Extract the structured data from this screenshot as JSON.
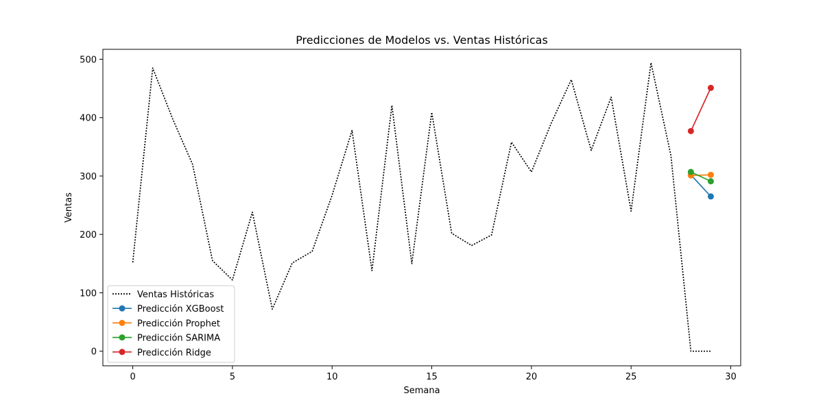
{
  "chart_data": {
    "type": "line",
    "title": "Predicciones de Modelos vs. Ventas Históricas",
    "xlabel": "Semana",
    "ylabel": "Ventas",
    "xlim": [
      -1.5,
      30.5
    ],
    "ylim": [
      -25,
      517
    ],
    "xticks": [
      0,
      5,
      10,
      15,
      20,
      25,
      30
    ],
    "yticks": [
      0,
      100,
      200,
      300,
      400,
      500
    ],
    "grid": false,
    "legend_position": "lower-left",
    "series": [
      {
        "name": "Ventas Históricas",
        "style": "dotted",
        "color": "#000000",
        "marker": "none",
        "x": [
          0,
          1,
          2,
          3,
          4,
          5,
          6,
          7,
          8,
          9,
          10,
          11,
          12,
          13,
          14,
          15,
          16,
          17,
          18,
          19,
          20,
          21,
          22,
          23,
          24,
          25,
          26,
          27,
          28,
          29
        ],
        "values": [
          152,
          485,
          398,
          320,
          155,
          122,
          238,
          72,
          151,
          171,
          267,
          378,
          138,
          421,
          150,
          409,
          202,
          181,
          199,
          358,
          307,
          391,
          465,
          344,
          435,
          240,
          494,
          335,
          0,
          0
        ]
      },
      {
        "name": "Predicción XGBoost",
        "style": "solid",
        "color": "#1f77b4",
        "marker": "circle",
        "x": [
          28,
          29
        ],
        "values": [
          302,
          265
        ]
      },
      {
        "name": "Predicción Prophet",
        "style": "solid",
        "color": "#ff7f0e",
        "marker": "circle",
        "x": [
          28,
          29
        ],
        "values": [
          301,
          302
        ]
      },
      {
        "name": "Predicción SARIMA",
        "style": "solid",
        "color": "#2ca02c",
        "marker": "circle",
        "x": [
          28,
          29
        ],
        "values": [
          307,
          291
        ]
      },
      {
        "name": "Predicción Ridge",
        "style": "solid",
        "color": "#d62728",
        "marker": "circle",
        "x": [
          28,
          29
        ],
        "values": [
          377,
          451
        ]
      }
    ]
  }
}
